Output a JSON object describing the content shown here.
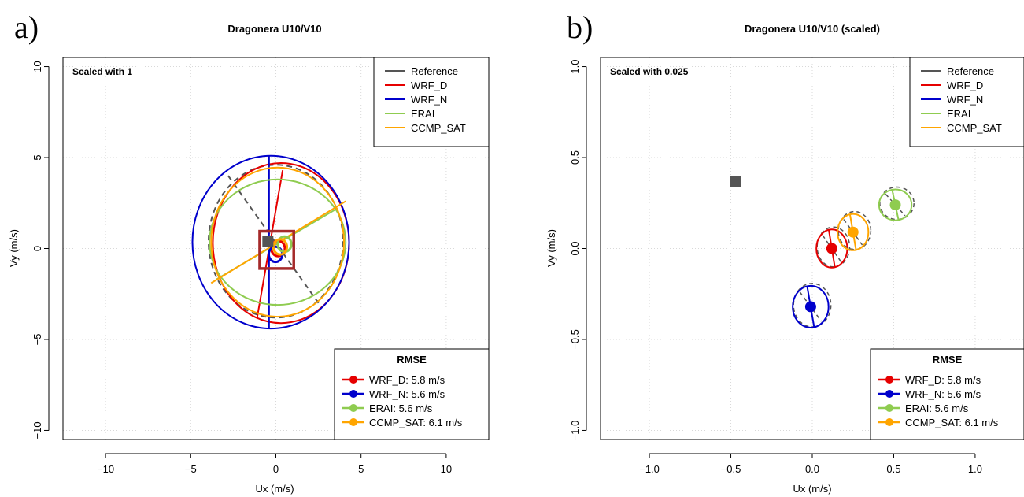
{
  "chart_data": [
    {
      "type": "scatter",
      "panel_label": "a)",
      "title": "Dragonera U10/V10",
      "xlabel": "Ux (m/s)",
      "ylabel": "Vy (m/s)",
      "xlim": [
        -12.5,
        12.5
      ],
      "ylim": [
        -10.5,
        10.5
      ],
      "x_ticks": [
        -10,
        -5,
        0,
        5,
        10
      ],
      "y_ticks": [
        -10,
        -5,
        0,
        5,
        10
      ],
      "grid": true,
      "annotation": "Scaled with 1",
      "scale_factor": 1,
      "legend_lines": {
        "position": "top-right",
        "entries": [
          {
            "name": "Reference",
            "color": "#555555"
          },
          {
            "name": "WRF_D",
            "color": "#e60000"
          },
          {
            "name": "WRF_N",
            "color": "#0000cc"
          },
          {
            "name": "ERAI",
            "color": "#8fcc50"
          },
          {
            "name": "CCMP_SAT",
            "color": "#ffa500"
          }
        ]
      },
      "legend_rmse": {
        "position": "bottom-right",
        "title": "RMSE",
        "entries": [
          {
            "label": "WRF_D: 5.8 m/s",
            "color": "#e60000"
          },
          {
            "label": "WRF_N: 5.6 m/s",
            "color": "#0000cc"
          },
          {
            "label": "ERAI: 5.6 m/s",
            "color": "#8fcc50"
          },
          {
            "label": "CCMP_SAT: 6.1 m/s",
            "color": "#ffa500"
          }
        ]
      },
      "reference_point": {
        "x": -0.47,
        "y": 0.37,
        "color": "#555555"
      },
      "zoom_box": {
        "x": [
          -0.95,
          1.05
        ],
        "y": [
          -1.1,
          0.95
        ],
        "color": "#a52a2a"
      },
      "series": [
        {
          "name": "WRF_D",
          "color": "#e60000",
          "center": [
            0.13,
            0.0
          ],
          "ellipses": [
            {
              "cx": 0.3,
              "cy": 0.3,
              "rx": 4.0,
              "ry": 4.4,
              "angle": 0
            }
          ],
          "axis_lines": [
            [
              [
                0.4,
                4.3
              ],
              [
                -1.1,
                -3.8
              ]
            ]
          ]
        },
        {
          "name": "WRF_N",
          "color": "#0000cc",
          "center": [
            -0.02,
            -0.32
          ],
          "ellipses": [
            {
              "cx": -0.3,
              "cy": 0.35,
              "rx": 4.6,
              "ry": 4.75,
              "angle": 0
            }
          ],
          "axis_lines": [
            [
              [
                -0.4,
                5.1
              ],
              [
                -0.4,
                -4.4
              ]
            ]
          ]
        },
        {
          "name": "ERAI",
          "color": "#8fcc50",
          "center": [
            0.51,
            0.24
          ],
          "ellipses": [
            {
              "cx": 0.1,
              "cy": 0.35,
              "rx": 4.0,
              "ry": 3.45,
              "angle": 0
            }
          ],
          "axis_lines": [
            [
              [
                -3.5,
                -1.7
              ],
              [
                3.6,
                2.2
              ]
            ]
          ]
        },
        {
          "name": "CCMP_SAT",
          "color": "#ffa500",
          "center": [
            0.25,
            0.09
          ],
          "ellipses": [
            {
              "cx": 0.1,
              "cy": 0.35,
              "rx": 3.9,
              "ry": 4.1,
              "angle": 0
            }
          ],
          "axis_lines": [
            [
              [
                -3.8,
                -1.9
              ],
              [
                4.1,
                2.6
              ]
            ]
          ]
        }
      ],
      "reference_ellipses": [
        {
          "cx": 0.0,
          "cy": 0.4,
          "rx": 3.95,
          "ry": 4.2
        }
      ],
      "reference_axis": [
        [
          -2.8,
          4.0
        ],
        [
          2.5,
          -3.0
        ]
      ]
    },
    {
      "type": "scatter",
      "panel_label": "b)",
      "title": "Dragonera U10/V10 (scaled)",
      "xlabel": "Ux (m/s)",
      "ylabel": "Vy (m/s)",
      "xlim": [
        -1.3,
        1.3
      ],
      "ylim": [
        -1.05,
        1.05
      ],
      "x_ticks": [
        -1.0,
        -0.5,
        0.0,
        0.5,
        1.0
      ],
      "y_ticks": [
        -1.0,
        -0.5,
        0.0,
        0.5,
        1.0
      ],
      "grid": true,
      "annotation": "Scaled with 0.025",
      "scale_factor": 0.025,
      "legend_lines": {
        "position": "top-right",
        "entries": [
          {
            "name": "Reference",
            "color": "#555555"
          },
          {
            "name": "WRF_D",
            "color": "#e60000"
          },
          {
            "name": "WRF_N",
            "color": "#0000cc"
          },
          {
            "name": "ERAI",
            "color": "#8fcc50"
          },
          {
            "name": "CCMP_SAT",
            "color": "#ffa500"
          }
        ]
      },
      "legend_rmse": {
        "position": "bottom-right",
        "title": "RMSE",
        "entries": [
          {
            "label": "WRF_D: 5.8 m/s",
            "color": "#e60000"
          },
          {
            "label": "WRF_N: 5.6 m/s",
            "color": "#0000cc"
          },
          {
            "label": "ERAI: 5.6 m/s",
            "color": "#8fcc50"
          },
          {
            "label": "CCMP_SAT: 6.1 m/s",
            "color": "#ffa500"
          }
        ]
      },
      "reference_point": {
        "x": -0.47,
        "y": 0.37,
        "color": "#555555"
      },
      "series": [
        {
          "name": "WRF_D",
          "color": "#e60000",
          "center": [
            0.12,
            0.0
          ],
          "rx": 0.095,
          "ry": 0.105
        },
        {
          "name": "WRF_N",
          "color": "#0000cc",
          "center": [
            -0.01,
            -0.32
          ],
          "rx": 0.11,
          "ry": 0.115
        },
        {
          "name": "ERAI",
          "color": "#8fcc50",
          "center": [
            0.51,
            0.24
          ],
          "rx": 0.1,
          "ry": 0.085
        },
        {
          "name": "CCMP_SAT",
          "color": "#ffa500",
          "center": [
            0.25,
            0.09
          ],
          "rx": 0.095,
          "ry": 0.1
        }
      ]
    }
  ]
}
